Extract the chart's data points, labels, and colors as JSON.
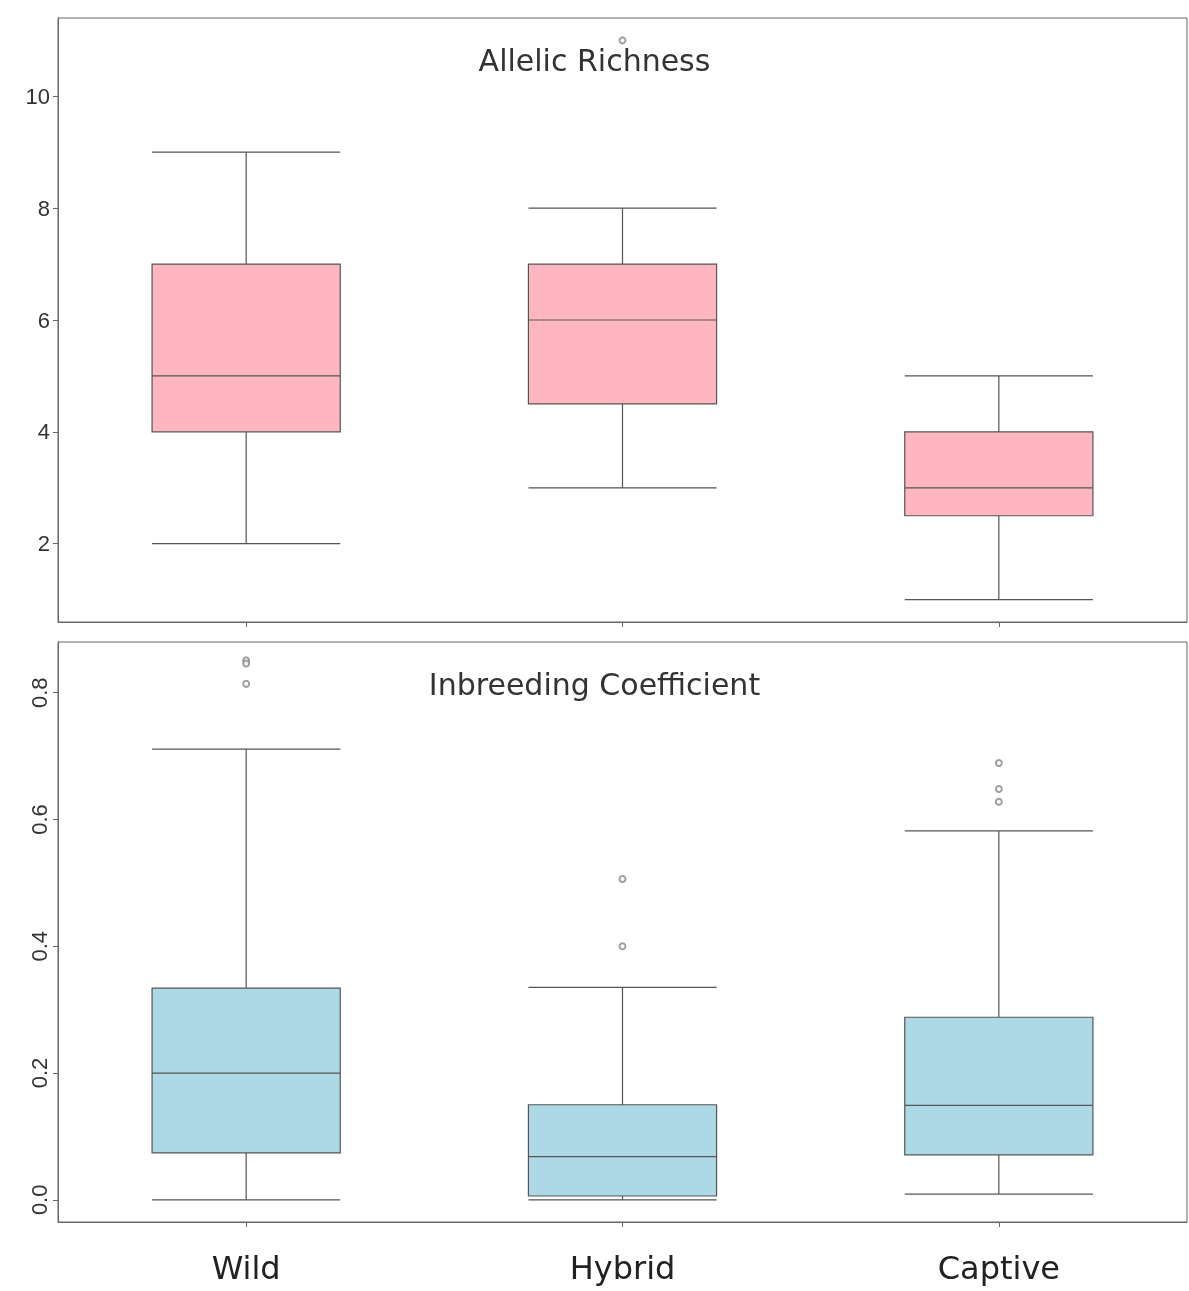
{
  "chart_data": [
    {
      "type": "box",
      "title": "Allelic Richness",
      "categories": [
        null,
        null,
        null
      ],
      "tick_labels": "y",
      "grid": false,
      "ylim": [
        0.6,
        11.4
      ],
      "yticks": [
        2,
        4,
        6,
        8,
        10
      ],
      "series": [
        {
          "color": "#ffb6c1",
          "boxes": [
            {
              "low": 2,
              "q1": 4,
              "median": 5,
              "q3": 7,
              "high": 9
            },
            {
              "low": 3,
              "q1": 4.5,
              "median": 6,
              "q3": 7,
              "high": 8,
              "outliers": [
                11
              ]
            },
            {
              "low": 1,
              "q1": 2.5,
              "median": 3,
              "q3": 4,
              "high": 5
            }
          ]
        }
      ]
    },
    {
      "type": "box",
      "title": "Inbreeding Coefficient",
      "categories": [
        "Wild",
        "Hybrid",
        "Captive"
      ],
      "grid": false,
      "ylim": [
        -0.035,
        0.88
      ],
      "yticks": [
        {
          "value": 0,
          "label": "0.0"
        },
        0.2,
        0.4,
        0.6,
        0.8
      ],
      "series": [
        {
          "color": "#add8e6",
          "boxes": [
            {
              "low": 0,
              "q1": 0.074,
              "median": 0.2,
              "q3": 0.334,
              "high": 0.711,
              "outliers": [
                0.851,
                0.846,
                0.814
              ]
            },
            {
              "low": 0,
              "q1": 0.006,
              "median": 0.068,
              "q3": 0.15,
              "high": 0.335,
              "outliers": [
                0.506,
                0.4
              ]
            },
            {
              "low": 0.009,
              "q1": 0.071,
              "median": 0.149,
              "q3": 0.288,
              "high": 0.582,
              "outliers": [
                0.689,
                0.648,
                0.628
              ]
            }
          ]
        }
      ]
    }
  ]
}
